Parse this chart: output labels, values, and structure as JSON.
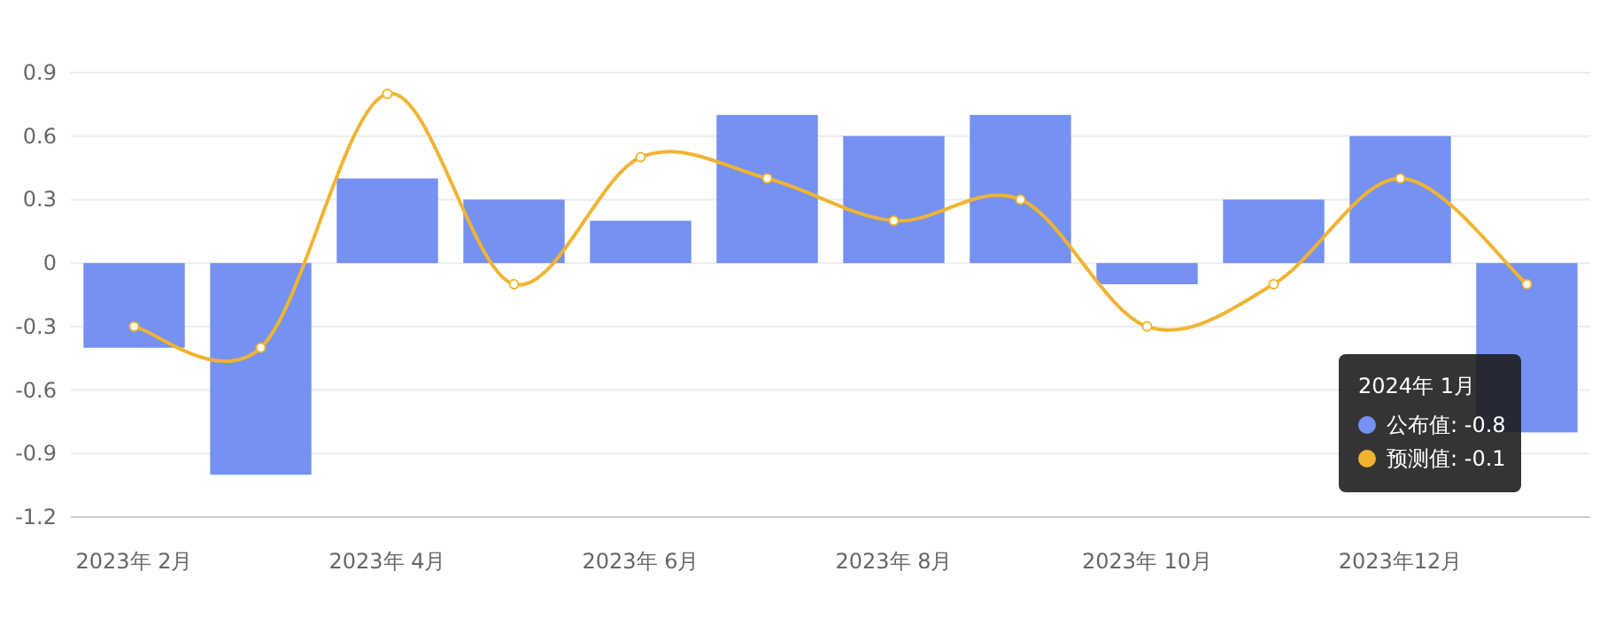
{
  "chart_data": {
    "type": "bar",
    "categories": [
      "2023年 2月",
      null,
      "2023年 4月",
      null,
      "2023年 6月",
      null,
      "2023年 8月",
      null,
      "2023年 10月",
      null,
      "2023年12月",
      null
    ],
    "series": [
      {
        "name": "公布值",
        "color": "#7591f1",
        "values": [
          -0.4,
          -1.0,
          0.4,
          0.3,
          0.2,
          0.7,
          0.6,
          0.7,
          -0.1,
          0.3,
          0.6,
          -0.8
        ]
      },
      {
        "name": "预测值",
        "type": "line",
        "color": "#f0b432",
        "values": [
          -0.3,
          -0.4,
          0.8,
          -0.1,
          0.5,
          0.4,
          0.2,
          0.3,
          -0.3,
          -0.1,
          0.4,
          -0.1
        ]
      }
    ],
    "ylim": [
      -1.2,
      0.9
    ],
    "yticks": [
      0.9,
      0.6,
      0.3,
      0,
      -0.3,
      -0.6,
      -0.9,
      -1.2
    ],
    "grid": "y",
    "annotations": [
      ": -0.8",
      ": -0.1"
    ],
    "marker": "circle",
    "legend": "bottom right",
    "legend_title": "2024年 1月"
  }
}
